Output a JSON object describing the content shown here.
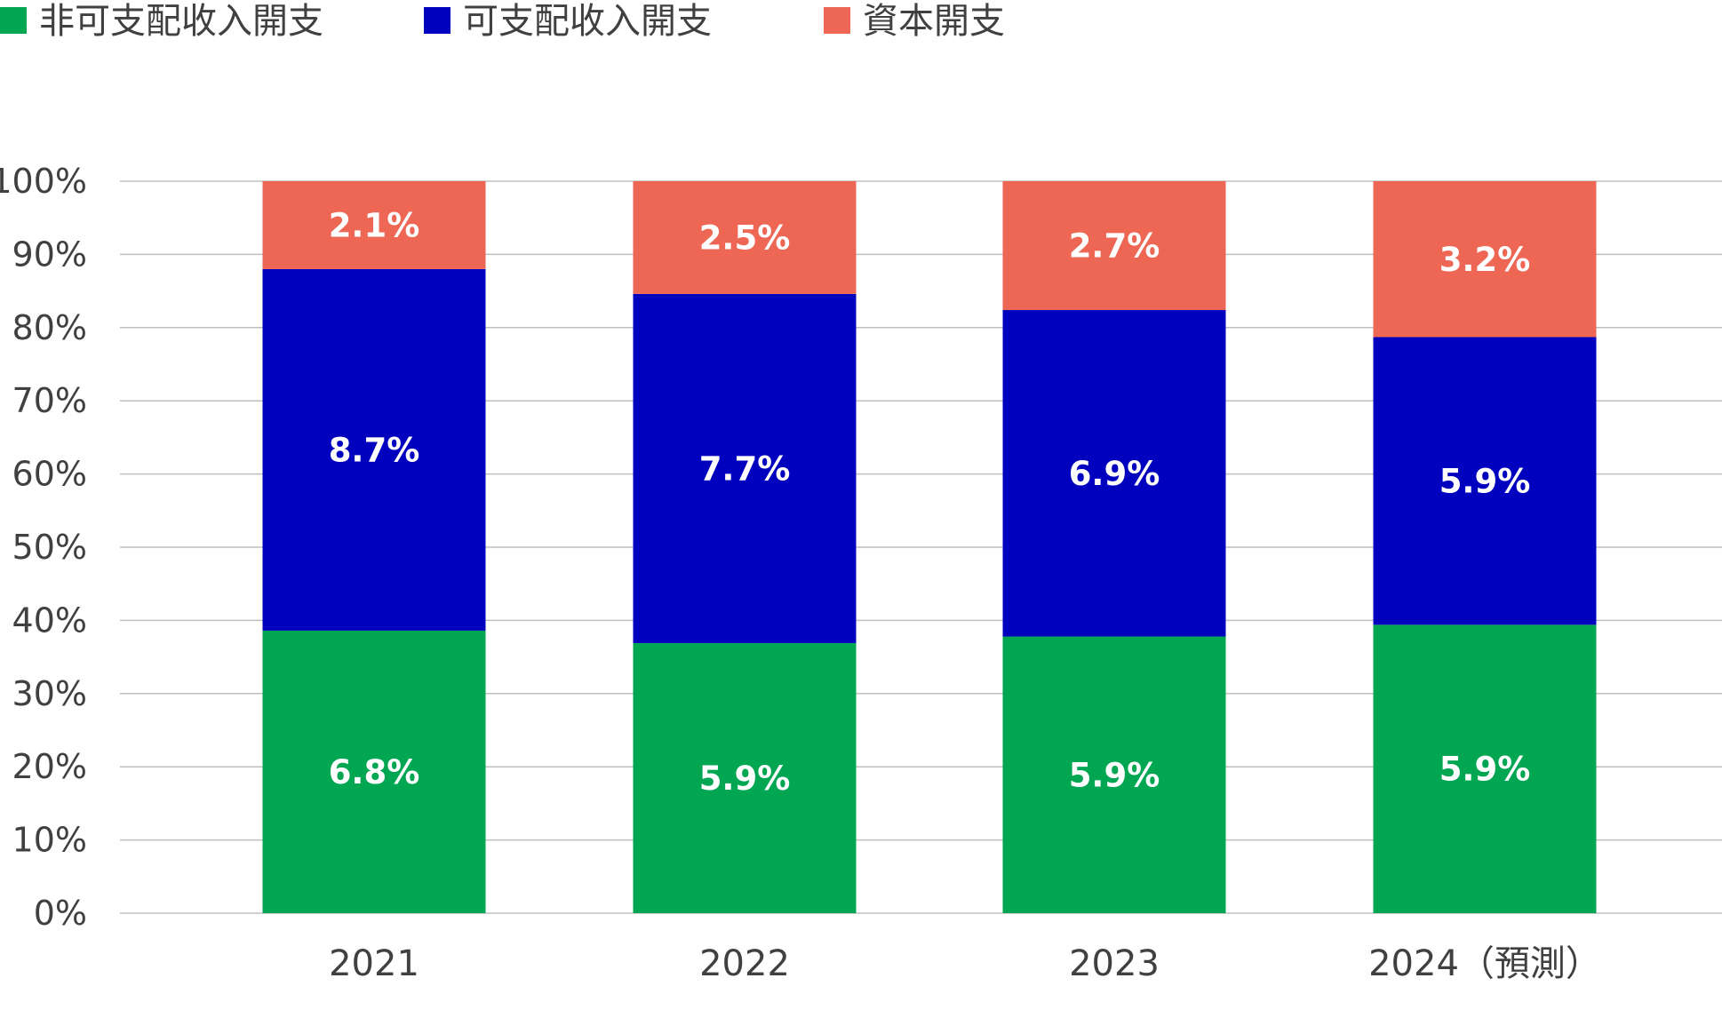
{
  "chart_data": {
    "type": "bar",
    "stacked": true,
    "categories": [
      "2021",
      "2022",
      "2023",
      "2024（預測）"
    ],
    "series": [
      {
        "name": "非可支配收入開支",
        "color": "#00a651",
        "shares": [
          38.6,
          36.9,
          37.8,
          39.4
        ],
        "labels": [
          "6.8%",
          "5.9%",
          "5.9%",
          "5.9%"
        ]
      },
      {
        "name": "可支配收入開支",
        "color": "#0000bf",
        "shares": [
          49.4,
          47.7,
          44.6,
          39.3
        ],
        "labels": [
          "8.7%",
          "7.7%",
          "6.9%",
          "5.9%"
        ]
      },
      {
        "name": "資本開支",
        "color": "#ee6654",
        "shares": [
          12.0,
          15.4,
          17.6,
          21.3
        ],
        "labels": [
          "2.1%",
          "2.5%",
          "2.7%",
          "3.2%"
        ]
      }
    ],
    "y_ticks": [
      "0%",
      "10%",
      "20%",
      "30%",
      "40%",
      "50%",
      "60%",
      "70%",
      "80%",
      "90%",
      "100%"
    ],
    "ylim": [
      0,
      100
    ],
    "grid": true,
    "gridline_color": "#bfbfbf",
    "legend_position": "top-left"
  }
}
